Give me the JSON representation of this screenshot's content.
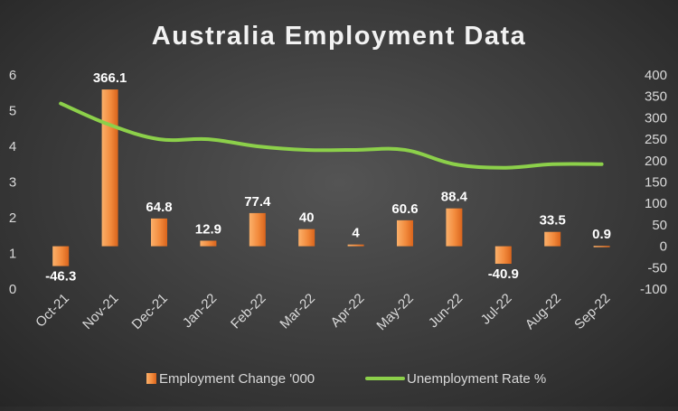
{
  "chart_data": {
    "type": "bar",
    "title": "Australia Employment Data",
    "categories": [
      "Oct-21",
      "Nov-21",
      "Dec-21",
      "Jan-22",
      "Feb-22",
      "Mar-22",
      "Apr-22",
      "May-22",
      "Jun-22",
      "Jul-22",
      "Aug-22",
      "Sep-22"
    ],
    "series": [
      {
        "name": "Employment Change '000",
        "type": "bar",
        "axis": "right",
        "values": [
          -46.3,
          366.1,
          64.8,
          12.9,
          77.4,
          40,
          4,
          60.6,
          88.4,
          -40.9,
          33.5,
          0.9
        ],
        "labels": [
          "-46.3",
          "366.1",
          "64.8",
          "12.9",
          "77.4",
          "40",
          "4",
          "60.6",
          "88.4",
          "-40.9",
          "33.5",
          "0.9"
        ],
        "color": "#f07a2a"
      },
      {
        "name": "Unemployment Rate %",
        "type": "line",
        "axis": "left",
        "values": [
          5.2,
          4.6,
          4.2,
          4.2,
          4.0,
          3.9,
          3.9,
          3.9,
          3.5,
          3.4,
          3.5,
          3.5
        ],
        "color": "#8cd04a"
      }
    ],
    "y_left": {
      "min": 0,
      "max": 6,
      "ticks": [
        "0",
        "1",
        "2",
        "3",
        "4",
        "5",
        "6"
      ]
    },
    "y_right": {
      "min": -100,
      "max": 400,
      "ticks": [
        "-100",
        "-50",
        "0",
        "50",
        "100",
        "150",
        "200",
        "250",
        "300",
        "350",
        "400"
      ]
    },
    "grid": false,
    "legend": "bottom",
    "colors": {
      "text": "#d9d9d9",
      "title": "#f2f2f2",
      "label": "#ffffff"
    }
  }
}
